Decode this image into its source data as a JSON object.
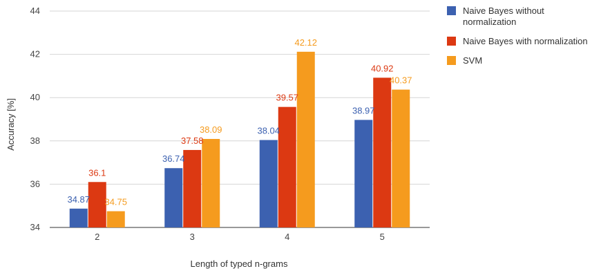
{
  "chart_data": {
    "type": "bar",
    "title": "",
    "xlabel": "Length of typed n-grams",
    "ylabel": "Accuracy [%]",
    "categories": [
      "2",
      "3",
      "4",
      "5"
    ],
    "ylim": [
      34,
      44
    ],
    "yticks": [
      34,
      36,
      38,
      40,
      42,
      44
    ],
    "grid": true,
    "legend_position": "right",
    "series": [
      {
        "name": "Naive Bayes without normalization",
        "legend_lines": [
          "Naive Bayes without",
          "normalization"
        ],
        "color": "#3c61b0",
        "values": [
          34.87,
          36.74,
          38.04,
          38.97
        ],
        "labels": [
          "34.87",
          "36.74",
          "38.04",
          "38.97"
        ]
      },
      {
        "name": "Naive Bayes with normalization",
        "legend_lines": [
          "Naive Bayes with normalization"
        ],
        "color": "#dc3912",
        "values": [
          36.1,
          37.58,
          39.57,
          40.92
        ],
        "labels": [
          "36.1",
          "37.58",
          "39.57",
          "40.92"
        ]
      },
      {
        "name": "SVM",
        "legend_lines": [
          "SVM"
        ],
        "color": "#f59b1e",
        "values": [
          34.75,
          38.09,
          42.12,
          40.37
        ],
        "labels": [
          "34.75",
          "38.09",
          "42.12",
          "40.37"
        ]
      }
    ]
  }
}
